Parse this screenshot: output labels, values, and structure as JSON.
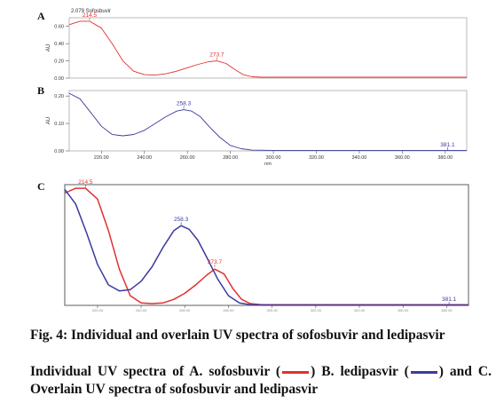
{
  "figure": {
    "caption_title": "Fig. 4: Individual and overlain UV spectra of sofosbuvir and ledipasvir",
    "caption_text_a": "Individual UV spectra of A. sofosbuvir (",
    "caption_text_b": ") B. ledipasvir (",
    "caption_text_c": ") and C. Overlain UV spectra of sofosbuvir and ledipasvir",
    "colors": {
      "sofosbuvir": "#e03030",
      "ledipasvir": "#3a3aa0",
      "axis": "#555555"
    }
  },
  "chart_data": [
    {
      "type": "line",
      "panel_label": "A",
      "header": "2.079 Sofosbuvir",
      "ylabel": "AU",
      "xlim": [
        205,
        390
      ],
      "ylim": [
        0,
        0.7
      ],
      "yticks": [
        "0.00",
        "0.20",
        "0.40",
        "0.60"
      ],
      "ytick_values": [
        0,
        0.2,
        0.4,
        0.6
      ],
      "peak_labels": [
        {
          "text": "214.5",
          "x": 214.5,
          "y": 0.66
        },
        {
          "text": "273.7",
          "x": 273.7,
          "y": 0.2
        }
      ],
      "series": [
        {
          "color": "#e03030",
          "x": [
            205,
            210,
            214.5,
            220,
            225,
            230,
            235,
            240,
            245,
            250,
            255,
            260,
            265,
            270,
            273.7,
            278,
            282,
            286,
            290,
            295,
            300,
            320,
            340,
            360,
            390
          ],
          "y": [
            0.62,
            0.66,
            0.66,
            0.58,
            0.4,
            0.2,
            0.08,
            0.04,
            0.035,
            0.05,
            0.08,
            0.12,
            0.16,
            0.19,
            0.2,
            0.17,
            0.1,
            0.04,
            0.015,
            0.01,
            0.01,
            0.01,
            0.01,
            0.01,
            0.01
          ]
        }
      ]
    },
    {
      "type": "line",
      "panel_label": "B",
      "ylabel": "AU",
      "xlabel": "nm",
      "xlim": [
        205,
        390
      ],
      "ylim": [
        0,
        0.22
      ],
      "yticks": [
        "0.00",
        "0.10",
        "0.20"
      ],
      "ytick_values": [
        0,
        0.1,
        0.2
      ],
      "xticks": [
        "220.00",
        "240.00",
        "260.00",
        "280.00",
        "300.00",
        "320.00",
        "340.00",
        "360.00",
        "380.00"
      ],
      "xtick_values": [
        220,
        240,
        260,
        280,
        300,
        320,
        340,
        360,
        380
      ],
      "peak_labels": [
        {
          "text": "258.3",
          "x": 258.3,
          "y": 0.15
        },
        {
          "text": "381.1",
          "x": 381.1,
          "y": 0.0
        }
      ],
      "series": [
        {
          "color": "#3a3aa0",
          "x": [
            205,
            210,
            215,
            220,
            225,
            230,
            235,
            240,
            245,
            250,
            255,
            258.3,
            262,
            266,
            270,
            275,
            280,
            285,
            290,
            300,
            320,
            340,
            360,
            390
          ],
          "y": [
            0.21,
            0.19,
            0.14,
            0.09,
            0.06,
            0.055,
            0.06,
            0.075,
            0.1,
            0.125,
            0.145,
            0.15,
            0.145,
            0.125,
            0.09,
            0.05,
            0.02,
            0.008,
            0.003,
            0.002,
            0.002,
            0.002,
            0.002,
            0.002
          ]
        }
      ]
    },
    {
      "type": "line",
      "panel_label": "C",
      "xlim": [
        205,
        390
      ],
      "ylim": [
        0,
        1.0
      ],
      "xticks": [
        "220.00",
        "240.00",
        "260.00",
        "280.00",
        "300.00",
        "320.00",
        "340.00",
        "360.00",
        "380.00"
      ],
      "xtick_values": [
        220,
        240,
        260,
        280,
        300,
        320,
        340,
        360,
        380
      ],
      "peak_labels": [
        {
          "text": "214.5",
          "x": 214.5,
          "y": 0.97,
          "color": "#e03030"
        },
        {
          "text": "258.3",
          "x": 258.3,
          "y": 0.66,
          "color": "#3a3aa0"
        },
        {
          "text": "273.7",
          "x": 273.7,
          "y": 0.31,
          "color": "#e03030"
        },
        {
          "text": "381.1",
          "x": 381.1,
          "y": 0.0,
          "color": "#3a3aa0"
        }
      ],
      "series": [
        {
          "color": "#e03030",
          "x": [
            205,
            210,
            214.5,
            220,
            225,
            230,
            235,
            240,
            245,
            250,
            255,
            260,
            265,
            270,
            273.7,
            278,
            282,
            286,
            290,
            295,
            300,
            320,
            340,
            360,
            390
          ],
          "y": [
            0.93,
            0.97,
            0.97,
            0.88,
            0.62,
            0.3,
            0.08,
            0.02,
            0.015,
            0.02,
            0.05,
            0.1,
            0.17,
            0.25,
            0.3,
            0.26,
            0.14,
            0.05,
            0.015,
            0.005,
            0.005,
            0.005,
            0.005,
            0.005,
            0.005
          ]
        },
        {
          "color": "#3a3aa0",
          "x": [
            205,
            210,
            215,
            220,
            225,
            230,
            235,
            240,
            245,
            250,
            255,
            258.3,
            262,
            266,
            270,
            275,
            280,
            285,
            290,
            300,
            320,
            340,
            360,
            390
          ],
          "y": [
            0.96,
            0.84,
            0.6,
            0.34,
            0.17,
            0.12,
            0.13,
            0.2,
            0.32,
            0.48,
            0.62,
            0.66,
            0.63,
            0.54,
            0.4,
            0.22,
            0.08,
            0.02,
            0.005,
            0.003,
            0.003,
            0.003,
            0.003,
            0.003
          ]
        }
      ]
    }
  ]
}
